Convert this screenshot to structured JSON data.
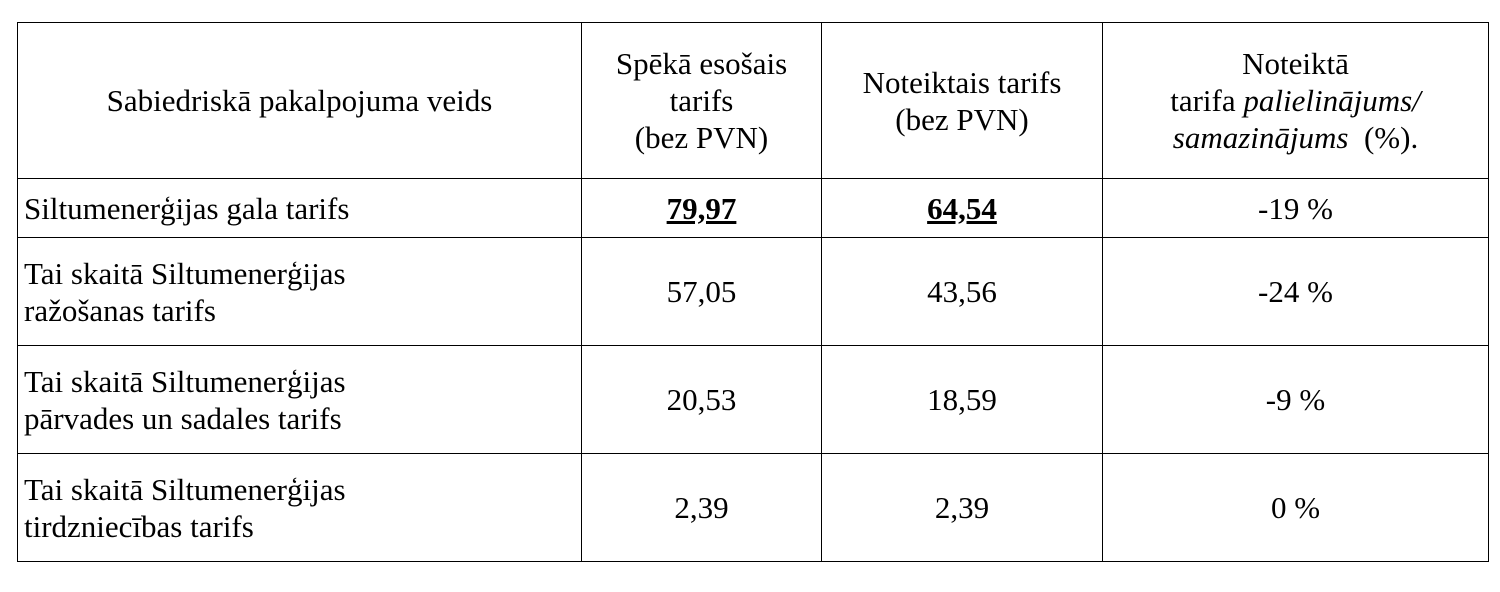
{
  "table": {
    "header": [
      [
        "Sabiedriskā pakalpojuma veids"
      ],
      [
        "Spēkā esošais",
        "tarifs",
        "(bez PVN)"
      ],
      [
        "Noteiktais tarifs",
        "(bez PVN)"
      ],
      [
        "Noteiktā",
        "tarifa",
        "palielinājums/",
        "samazinājums",
        "(%)."
      ]
    ],
    "rows": [
      [
        [
          "Siltumenerģijas gala tarifs"
        ],
        "79,97",
        "64,54",
        "-19 %"
      ],
      [
        [
          "Tai skaitā Siltumenerģijas",
          "ražošanas tarifs"
        ],
        "57,05",
        "43,56",
        "-24 %"
      ],
      [
        [
          "Tai skaitā Siltumenerģijas",
          "pārvades un sadales tarifs"
        ],
        "20,53",
        "18,59",
        "-9 %"
      ],
      [
        [
          "Tai skaitā Siltumenerģijas",
          "tirdzniecības tarifs"
        ],
        "2,39",
        "2,39",
        "0 %"
      ]
    ]
  }
}
